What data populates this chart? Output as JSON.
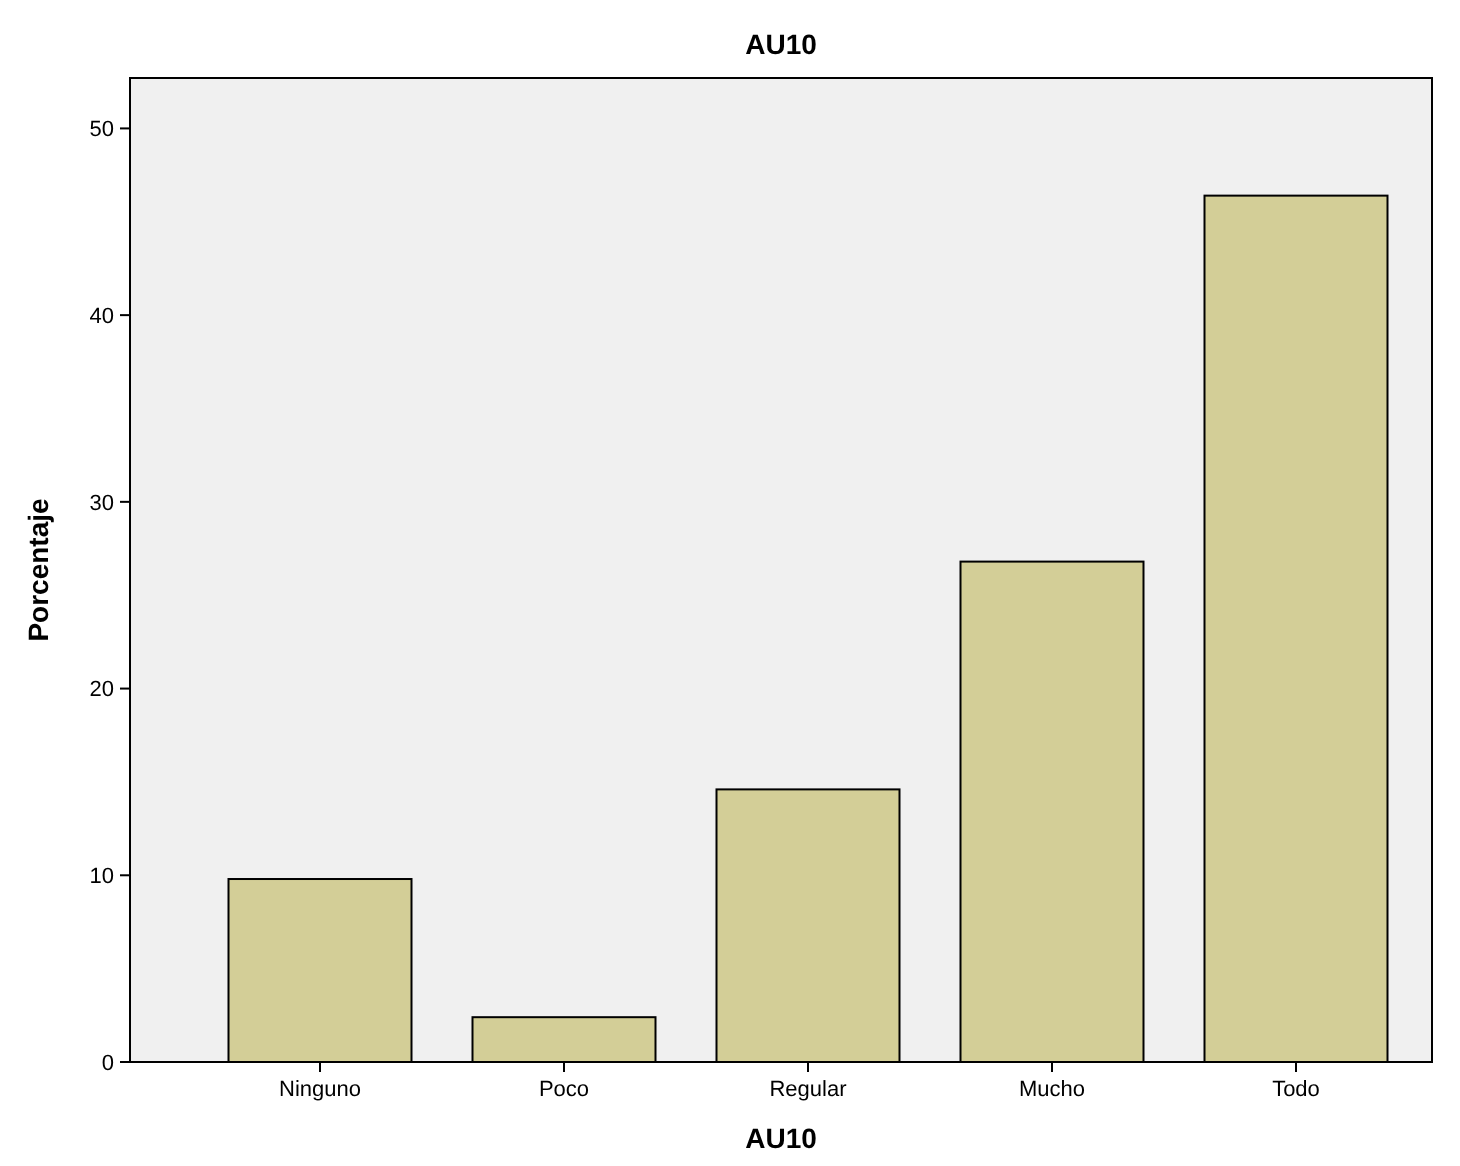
{
  "chart_data": {
    "type": "bar",
    "title": "AU10",
    "xlabel": "AU10",
    "ylabel": "Porcentaje",
    "categories": [
      "Ninguno",
      "Poco",
      "Regular",
      "Mucho",
      "Todo"
    ],
    "values": [
      9.8,
      2.4,
      14.6,
      26.8,
      46.4
    ],
    "color": "#d3ce97",
    "ylim": [
      0,
      52.7
    ],
    "yticks": [
      0,
      10,
      20,
      30,
      40,
      50
    ],
    "grid": false
  }
}
